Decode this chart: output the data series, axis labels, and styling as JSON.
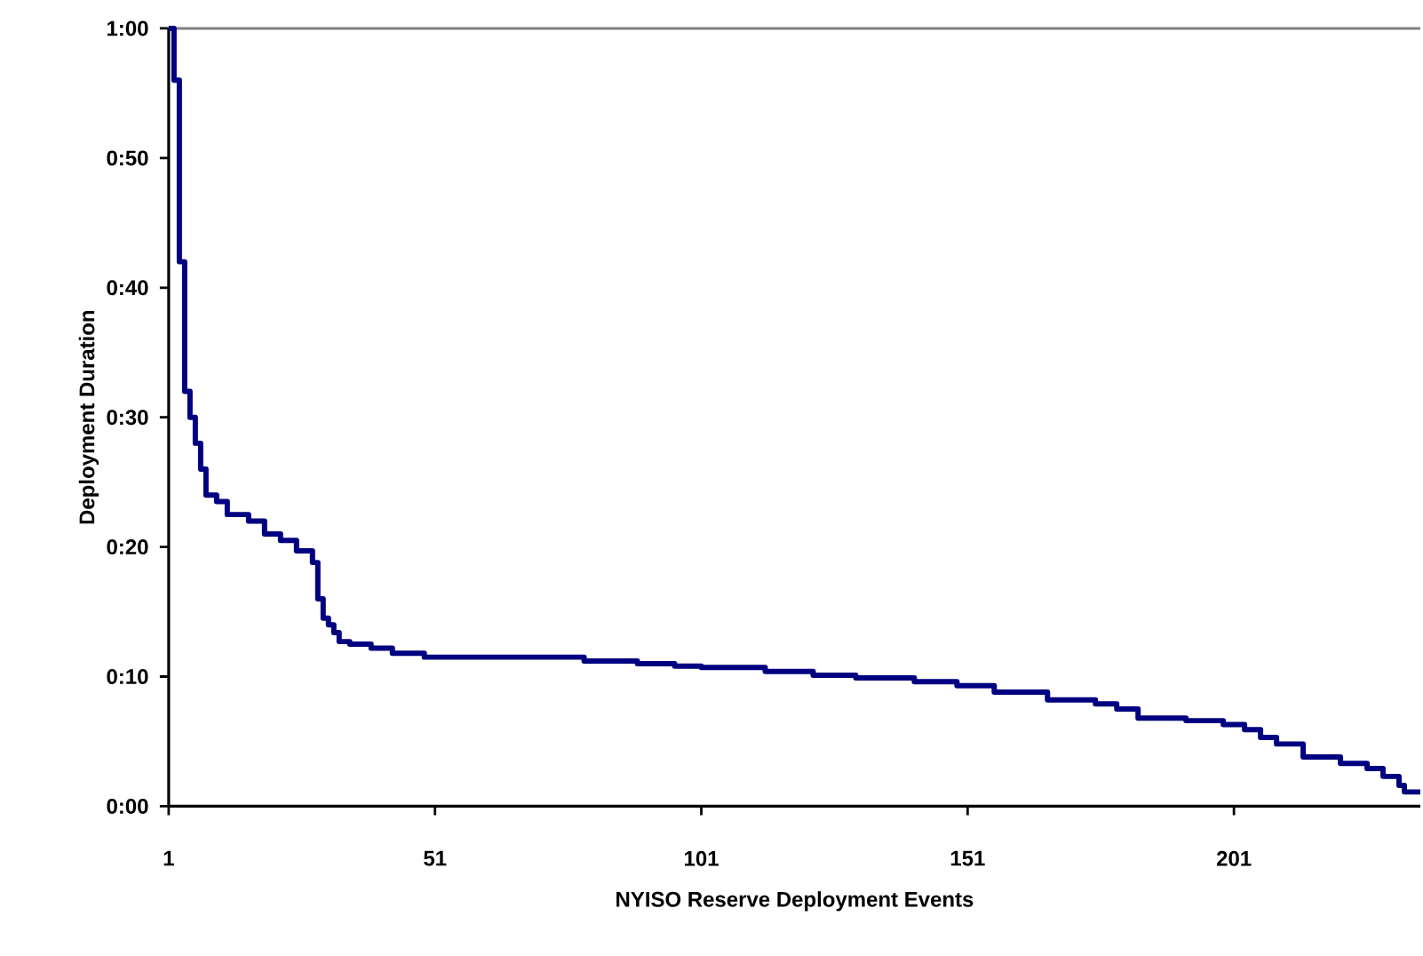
{
  "chart_data": {
    "type": "step",
    "xlabel": "NYISO Reserve Deployment Events",
    "ylabel": "Deployment Duration",
    "series": [
      {
        "color": "#000080",
        "x": [
          1,
          2,
          3,
          4,
          5,
          6,
          7,
          8,
          10,
          12,
          16,
          19,
          22,
          25,
          28,
          29,
          30,
          31,
          32,
          33,
          35,
          39,
          43,
          49,
          79,
          89,
          96,
          101,
          113,
          122,
          130,
          141,
          149,
          156,
          166,
          175,
          179,
          183,
          192,
          199,
          203,
          206,
          209,
          214,
          221,
          226,
          229,
          232,
          233,
          236
        ],
        "values": [
          60,
          56,
          42,
          32,
          30,
          28,
          26,
          24,
          23.5,
          22.5,
          22,
          21,
          20.5,
          19.7,
          18.8,
          16,
          14.5,
          14,
          13.4,
          12.7,
          12.5,
          12.2,
          11.8,
          11.5,
          11.2,
          11,
          10.8,
          10.7,
          10.4,
          10.1,
          9.9,
          9.6,
          9.3,
          8.8,
          8.2,
          7.9,
          7.5,
          6.8,
          6.6,
          6.3,
          5.9,
          5.3,
          4.8,
          3.8,
          3.3,
          2.9,
          2.3,
          1.6,
          1.1,
          1.1
        ]
      }
    ],
    "xlim": [
      1,
      236
    ],
    "xticks": [
      1,
      51,
      101,
      151,
      201
    ],
    "ylim": [
      0,
      60
    ],
    "yticks": [
      {
        "value": 0,
        "label": "0:00"
      },
      {
        "value": 10,
        "label": "0:10"
      },
      {
        "value": 20,
        "label": "0:20"
      },
      {
        "value": 30,
        "label": "0:30"
      },
      {
        "value": 40,
        "label": "0:40"
      },
      {
        "value": 50,
        "label": "0:50"
      },
      {
        "value": 60,
        "label": "1:00"
      }
    ],
    "grid": false
  }
}
